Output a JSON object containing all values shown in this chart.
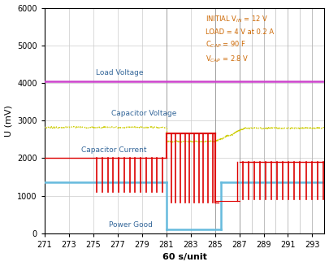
{
  "xlabel": "60 s/unit",
  "ylabel": "U (mV)",
  "xlim": [
    271,
    294
  ],
  "ylim": [
    0,
    6000
  ],
  "xticks": [
    271,
    273,
    275,
    277,
    279,
    281,
    283,
    285,
    287,
    289,
    291,
    293
  ],
  "yticks": [
    0,
    1000,
    2000,
    3000,
    4000,
    5000,
    6000
  ],
  "load_voltage_color": "#cc44cc",
  "load_voltage_y": 4050,
  "cap_voltage_color": "#cccc00",
  "cap_voltage_before": 2820,
  "cap_voltage_during": 2440,
  "cap_voltage_after": 2800,
  "cap_current_color": "#dd0000",
  "cap_current_baseline_pre": 2000,
  "cap_current_spike_low_pre": 1100,
  "cap_current_pulse_high": 2650,
  "cap_current_pulse_low": 820,
  "cap_current_baseline_post": 1900,
  "cap_current_spike_low_post": 900,
  "power_good_color": "#66bbdd",
  "power_good_high": 1350,
  "power_good_low": 100,
  "pg_drop_x": 281,
  "pg_rise_x": 285.5,
  "pulse_start": 281,
  "pulse_end": 285,
  "post_start": 287,
  "annotation_text": "INITIAL V$_{IN}$ = 12 V\nLOAD = 4 V at 0.2 A\nC$_{CAP}$ = 90 F\nV$_{CAP}$ = 2.8 V",
  "annotation_color": "#cc6600",
  "label_color": "#336699",
  "label_load_voltage": [
    275.2,
    4220
  ],
  "label_cap_voltage": [
    276.5,
    3130
  ],
  "label_cap_current": [
    274.0,
    2170
  ],
  "label_power_good": [
    276.3,
    170
  ]
}
